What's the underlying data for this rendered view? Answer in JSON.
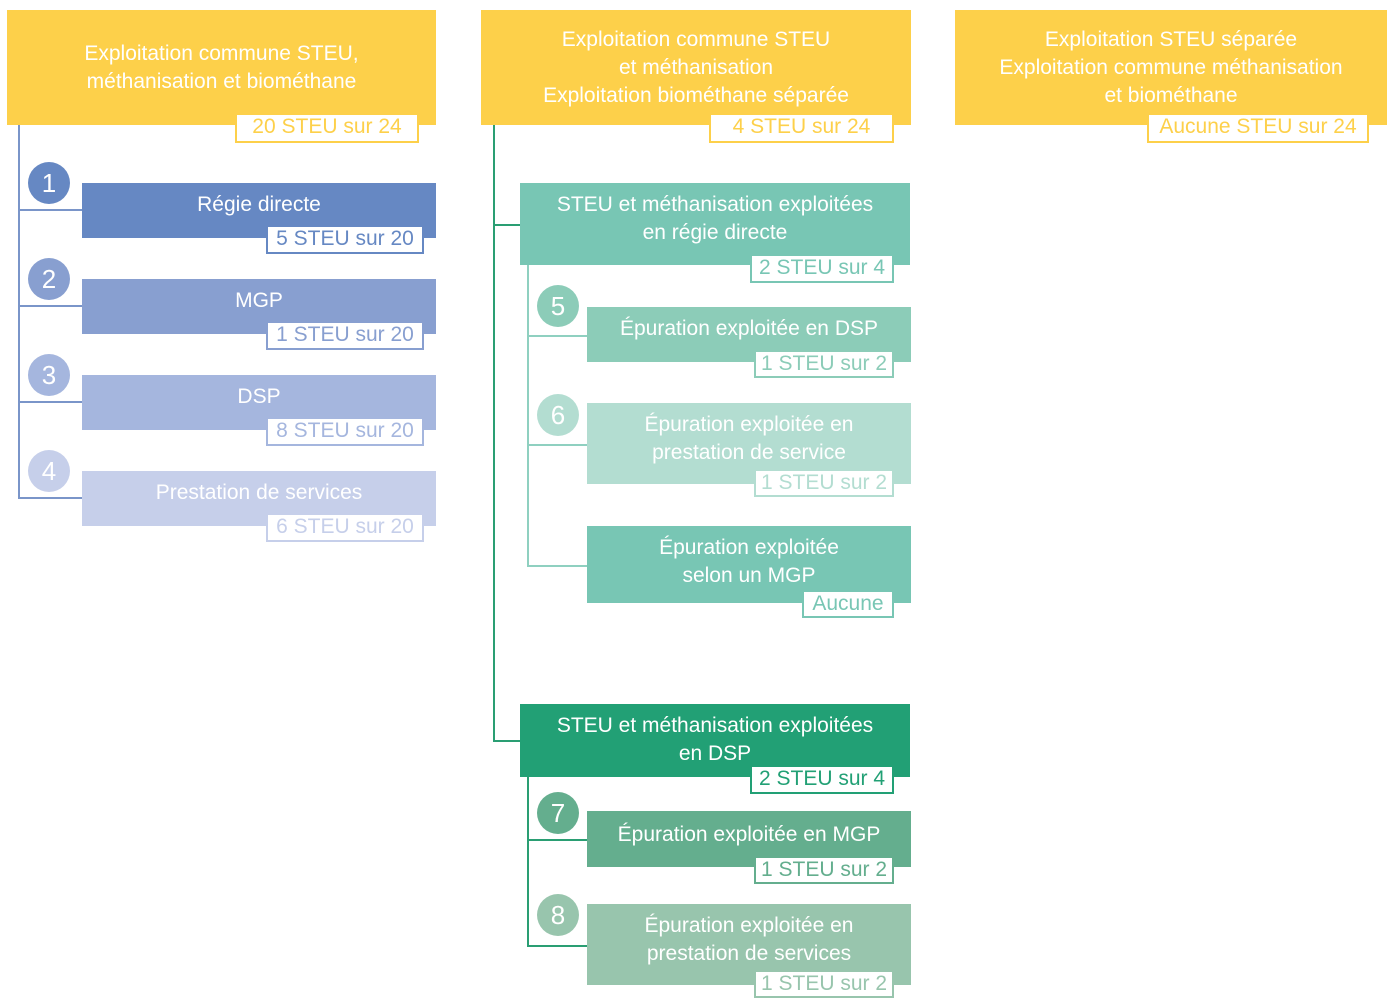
{
  "columns": [
    {
      "title": [
        "Exploitation commune STEU,",
        "méthanisation et biométhane"
      ],
      "count": "20 STEU sur 24",
      "items": [
        {
          "number": "1",
          "label": [
            "Régie directe"
          ],
          "count": "5 STEU sur 20"
        },
        {
          "number": "2",
          "label": [
            "MGP"
          ],
          "count": "1 STEU sur 20"
        },
        {
          "number": "3",
          "label": [
            "DSP"
          ],
          "count": "8 STEU sur 20"
        },
        {
          "number": "4",
          "label": [
            "Prestation de services"
          ],
          "count": "6 STEU sur 20"
        }
      ]
    },
    {
      "title": [
        "Exploitation commune STEU",
        "et méthanisation",
        "Exploitation biométhane séparée"
      ],
      "count": "4 STEU sur 24",
      "groups": [
        {
          "label": [
            "STEU et méthanisation exploitées",
            "en régie directe"
          ],
          "count": "2 STEU sur 4",
          "items": [
            {
              "number": "5",
              "label": [
                "Épuration exploitée en DSP"
              ],
              "count": "1 STEU sur 2"
            },
            {
              "number": "6",
              "label": [
                "Épuration exploitée en",
                "prestation de service"
              ],
              "count": "1 STEU sur 2"
            },
            {
              "label": [
                "Épuration exploitée",
                "selon un MGP"
              ],
              "count": "Aucune"
            }
          ]
        },
        {
          "label": [
            "STEU et méthanisation exploitées",
            "en DSP"
          ],
          "count": "2 STEU sur 4",
          "items": [
            {
              "number": "7",
              "label": [
                "Épuration exploitée en MGP"
              ],
              "count": "1 STEU sur 2"
            },
            {
              "number": "8",
              "label": [
                "Épuration exploitée en",
                "prestation de services"
              ],
              "count": "1 STEU sur 2"
            }
          ]
        }
      ]
    },
    {
      "title": [
        "Exploitation STEU séparée",
        "Exploitation commune méthanisation",
        "et biométhane"
      ],
      "count": "Aucune STEU sur 24"
    }
  ]
}
